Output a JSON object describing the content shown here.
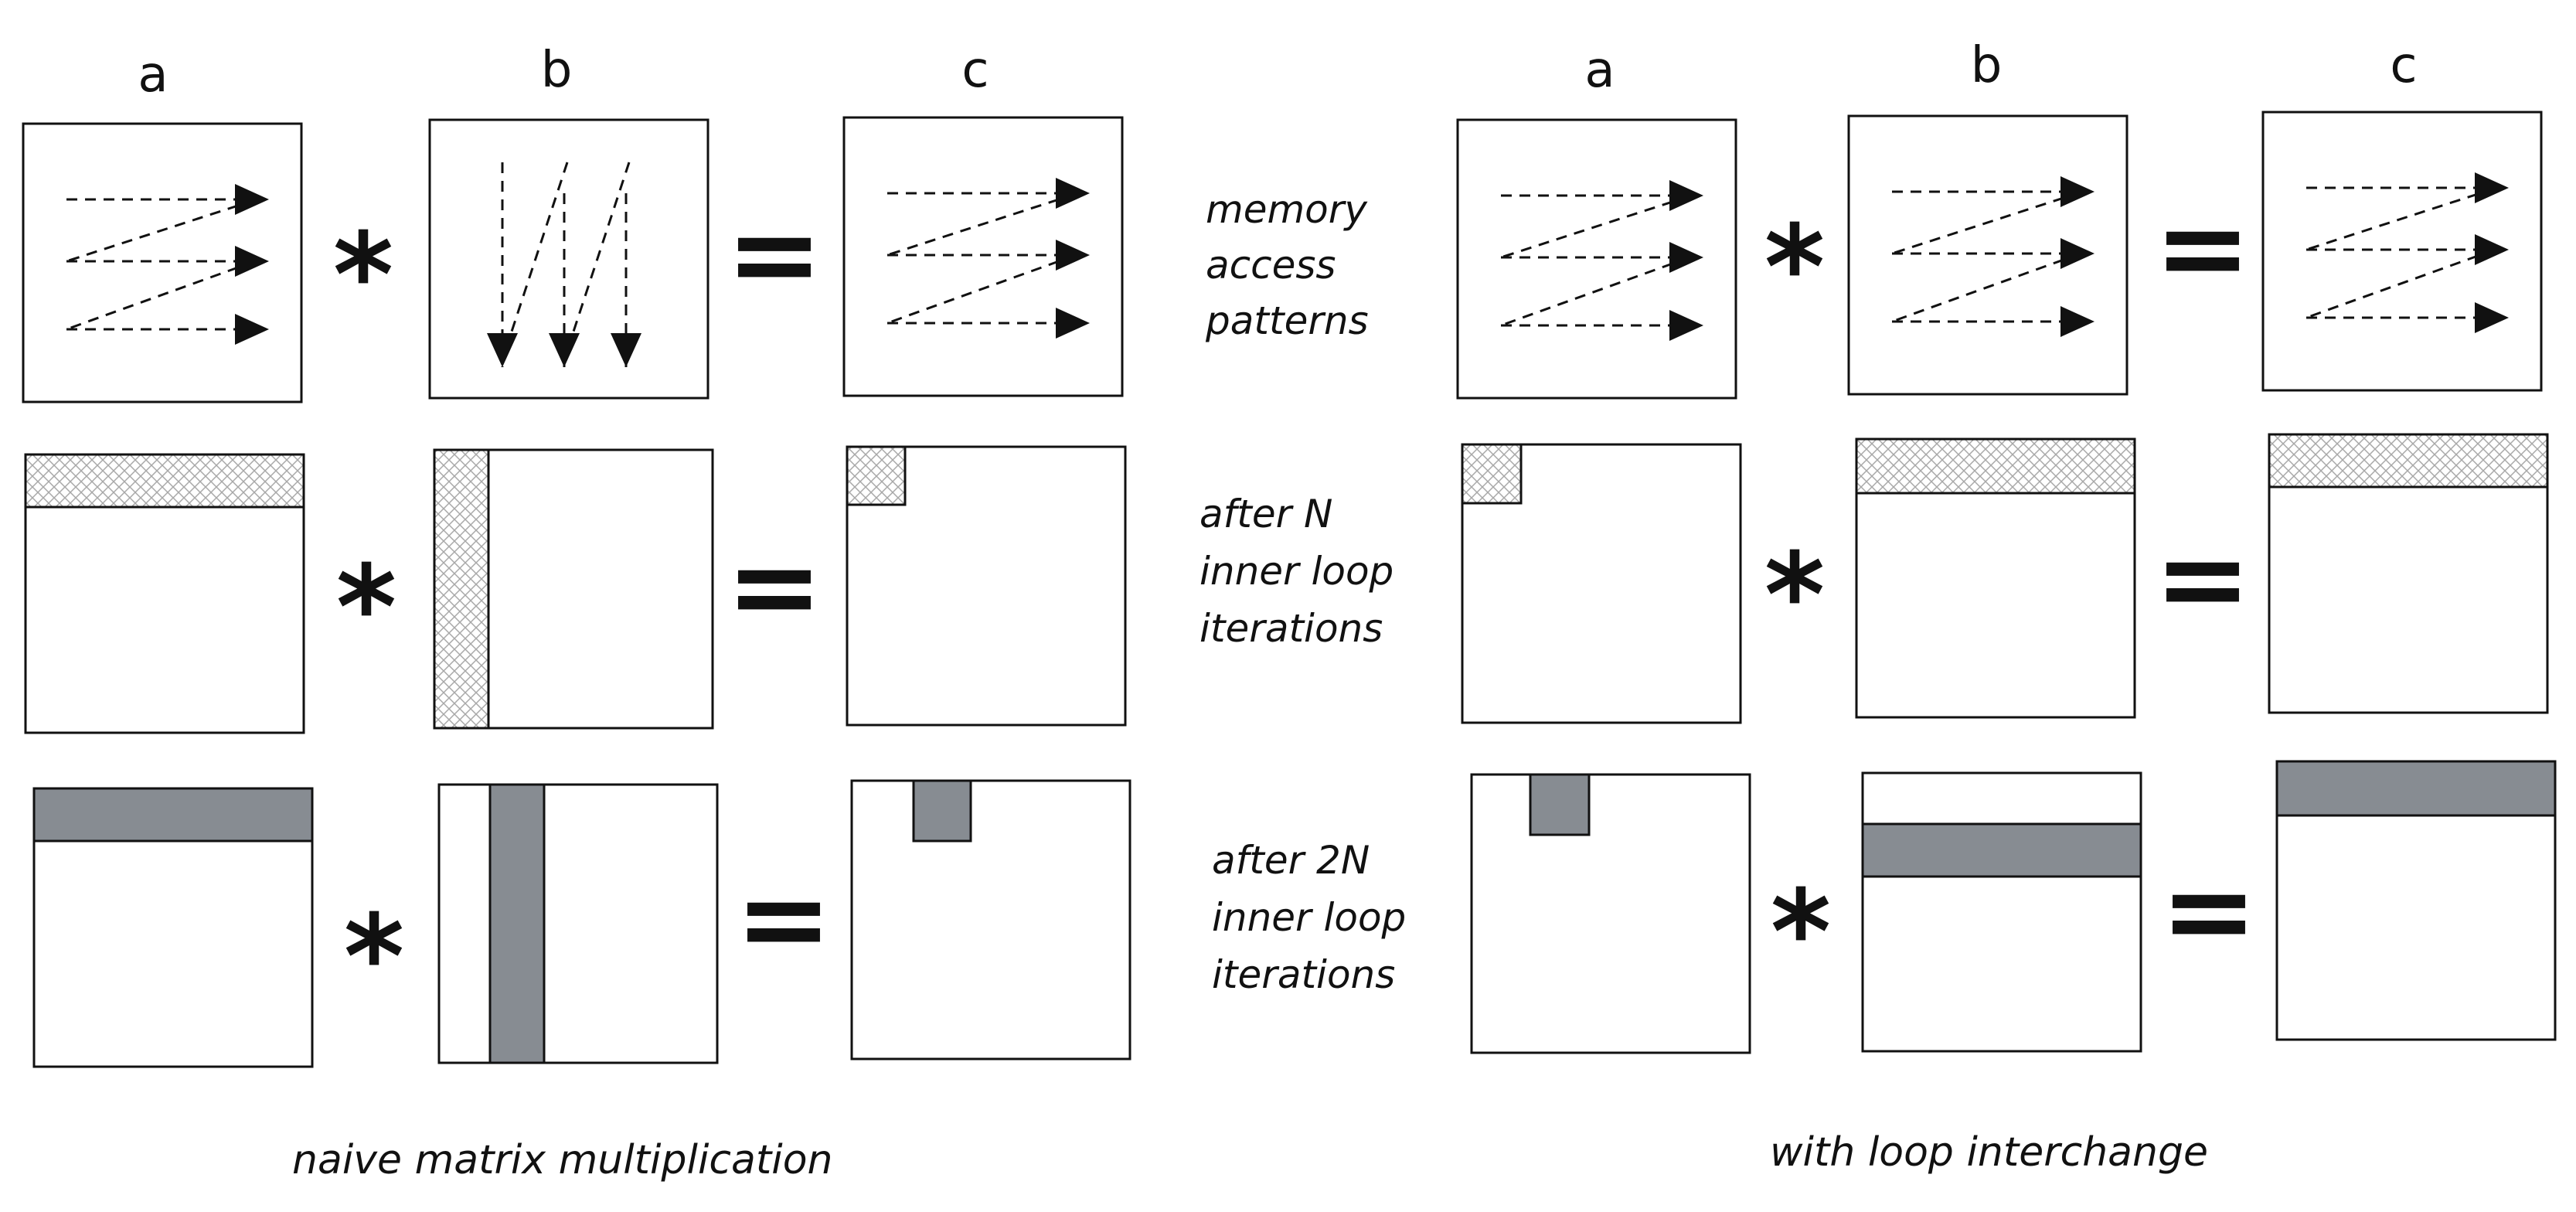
{
  "columns": {
    "left": [
      "a",
      "b",
      "c"
    ],
    "right": [
      "a",
      "b",
      "c"
    ]
  },
  "row_labels": [
    [
      "memory",
      "access",
      "patterns"
    ],
    [
      "after N",
      "inner loop",
      "iterations"
    ],
    [
      "after 2N",
      "inner loop",
      "iterations"
    ]
  ],
  "operators": {
    "multiply": "*",
    "equals": "="
  },
  "captions": {
    "left": "naive matrix multiplication",
    "right": "with loop interchange"
  },
  "colors": {
    "stroke": "#111111",
    "hatch": "#b0b0b0",
    "filled": "#878c92"
  }
}
